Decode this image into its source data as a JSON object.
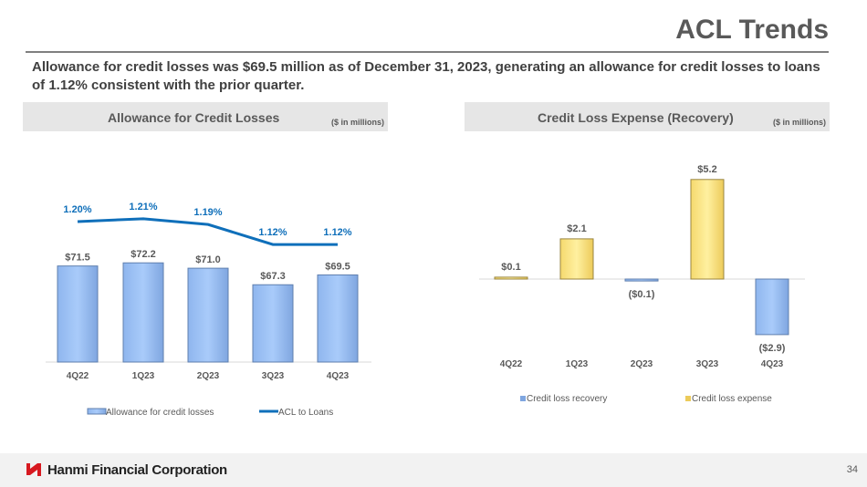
{
  "title": "ACL Trends",
  "subtitle": "Allowance for credit losses was $69.5 million as of December 31, 2023, generating an allowance for credit losses to loans of 1.12% consistent with the prior quarter.",
  "footer": {
    "company": "Hanmi Financial Corporation",
    "page": "34",
    "brand_color": "#d71920"
  },
  "chart_data": [
    {
      "type": "bar+line",
      "title": "Allowance for Credit Losses",
      "unit_note": "($ in millions)",
      "categories": [
        "4Q22",
        "1Q23",
        "2Q23",
        "3Q23",
        "4Q23"
      ],
      "series": [
        {
          "name": "Allowance for credit losses",
          "type": "bar",
          "values": [
            71.5,
            72.2,
            71.0,
            67.3,
            69.5
          ],
          "labels": [
            "$71.5",
            "$72.2",
            "$71.0",
            "$67.3",
            "$69.5"
          ],
          "color": "#9dc3f5"
        },
        {
          "name": "ACL to Loans",
          "type": "line",
          "values": [
            1.2,
            1.21,
            1.19,
            1.12,
            1.12
          ],
          "labels": [
            "1.20%",
            "1.21%",
            "1.19%",
            "1.12%",
            "1.12%"
          ],
          "color": "#0f6fba"
        }
      ],
      "legend": "bottom",
      "grid": false
    },
    {
      "type": "bar",
      "title": "Credit Loss Expense (Recovery)",
      "unit_note": "($ in millions)",
      "categories": [
        "4Q22",
        "1Q23",
        "2Q23",
        "3Q23",
        "4Q23"
      ],
      "values": [
        0.1,
        2.1,
        -0.1,
        5.2,
        -2.9
      ],
      "labels": [
        "$0.1",
        "$2.1",
        "($0.1)",
        "$5.2",
        "($2.9)"
      ],
      "series": [
        {
          "name": "Credit loss recovery",
          "color": "#9dc3f5"
        },
        {
          "name": "Credit loss expense",
          "color": "#fce58a"
        }
      ],
      "legend": "bottom",
      "grid": false
    }
  ]
}
